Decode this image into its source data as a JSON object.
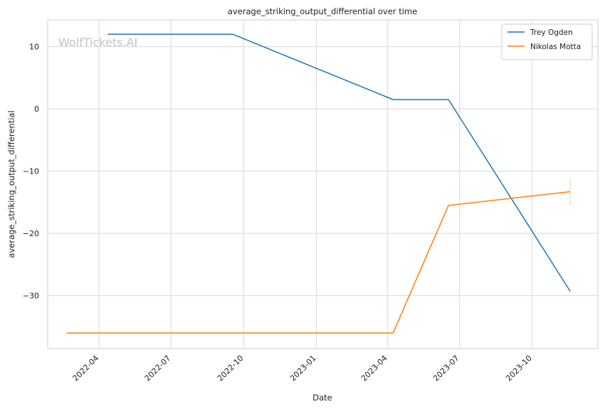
{
  "chart_data": {
    "type": "line",
    "title": "average_striking_output_differential over time",
    "xlabel": "Date",
    "ylabel": "average_striking_output_differential",
    "watermark": "WolfTickets.AI",
    "x_tick_labels": [
      "2022-04",
      "2022-07",
      "2022-10",
      "2023-01",
      "2023-04",
      "2023-07",
      "2023-10"
    ],
    "x_tick_dates": [
      "2022-04-01",
      "2022-07-01",
      "2022-10-01",
      "2023-01-01",
      "2023-04-01",
      "2023-07-01",
      "2023-10-01"
    ],
    "xlim": [
      "2022-01-26",
      "2023-12-23"
    ],
    "ylim": [
      -38.5,
      14.3
    ],
    "y_ticks": [
      10,
      0,
      -10,
      -20,
      -30
    ],
    "y_tick_labels": [
      "10",
      "0",
      "−10",
      "−20",
      "−30"
    ],
    "grid": true,
    "legend_position": "top-right",
    "series": [
      {
        "name": "Trey Ogden",
        "color": "#1f77b4",
        "points": [
          {
            "x": "2022-04-12",
            "y": 12.0
          },
          {
            "x": "2022-09-17",
            "y": 12.0
          },
          {
            "x": "2023-04-08",
            "y": 1.5
          },
          {
            "x": "2023-06-17",
            "y": 1.5
          },
          {
            "x": "2023-11-18",
            "y": -29.3
          }
        ]
      },
      {
        "name": "Nikolas Motta",
        "color": "#ff7f0e",
        "points": [
          {
            "x": "2022-02-19",
            "y": -36.0
          },
          {
            "x": "2023-04-08",
            "y": -36.0
          },
          {
            "x": "2023-06-17",
            "y": -15.5
          },
          {
            "x": "2023-11-18",
            "y": -13.3
          }
        ],
        "error_bar": {
          "x": "2023-11-18",
          "low": -15.5,
          "high": -11.2
        }
      }
    ]
  }
}
